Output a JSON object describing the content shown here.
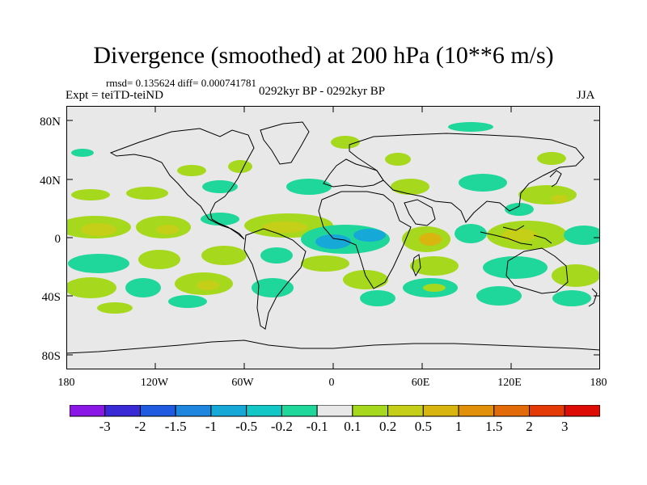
{
  "title": "Divergence (smoothed) at 200 hPa (10**6 m/s)",
  "stats": "rmsd= 0.135624 diff= 0.000741781",
  "expt": "Expt = teiTD-teiND",
  "period": "0292kyr BP - 0292kyr BP",
  "season": "JJA",
  "map": {
    "lat_labels": [
      "80N",
      "40N",
      "0",
      "40S",
      "80S"
    ],
    "lon_labels": [
      "180",
      "120W",
      "60W",
      "0",
      "60E",
      "120E",
      "180"
    ],
    "background": "#e8e8e8"
  },
  "colorbar": {
    "labels": [
      "-3",
      "-2",
      "-1.5",
      "-1",
      "-0.5",
      "-0.2",
      "-0.1",
      "0.1",
      "0.2",
      "0.5",
      "1",
      "1.5",
      "2",
      "3"
    ],
    "colors": [
      "#8a17e6",
      "#3a2ad6",
      "#1e5be0",
      "#1f86e0",
      "#16a9d8",
      "#13c7c7",
      "#1fd69b",
      "#e8e8e8",
      "#a6d81e",
      "#c6cf17",
      "#d8b50f",
      "#e0900b",
      "#e36a09",
      "#e33a06",
      "#dd0d06"
    ]
  }
}
